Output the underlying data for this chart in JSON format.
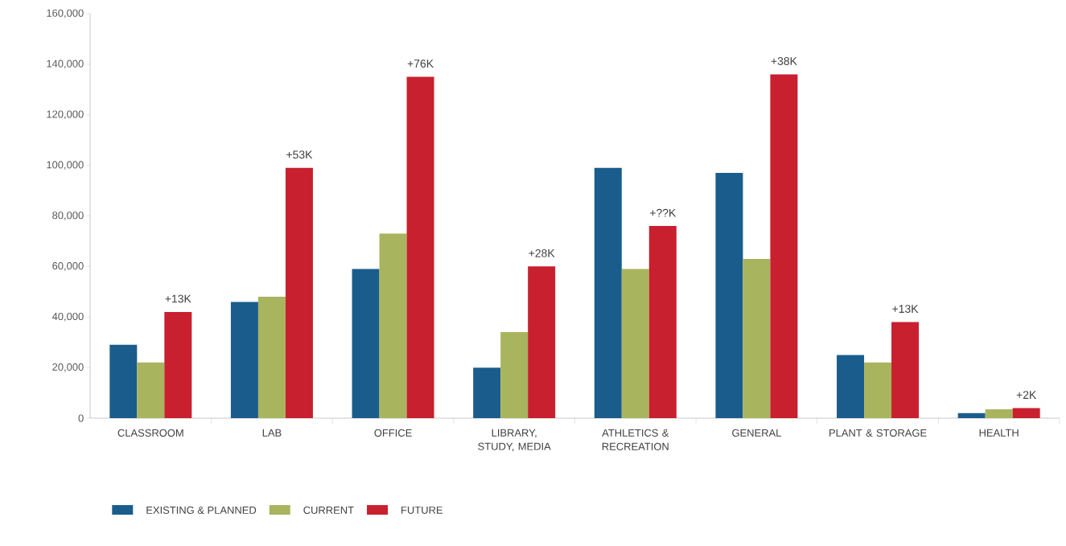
{
  "chart_data": {
    "type": "bar",
    "categories": [
      "CLASSROOM",
      "LAB",
      "OFFICE",
      "LIBRARY, STUDY, MEDIA",
      "ATHLETICS & RECREATION",
      "GENERAL",
      "PLANT & STORAGE",
      "HEALTH"
    ],
    "series": [
      {
        "name": "EXISTING & PLANNED",
        "color": "#1a5d8c",
        "values": [
          29000,
          46000,
          59000,
          20000,
          99000,
          97000,
          25000,
          2000
        ]
      },
      {
        "name": "CURRENT",
        "color": "#a9b45e",
        "values": [
          22000,
          48000,
          73000,
          34000,
          59000,
          63000,
          22000,
          3500
        ]
      },
      {
        "name": "FUTURE",
        "color": "#c8202e",
        "values": [
          42000,
          99000,
          135000,
          60000,
          76000,
          136000,
          38000,
          4000
        ]
      }
    ],
    "ylim": [
      0,
      160000
    ],
    "yticks": [
      {
        "value": 0,
        "label": "0"
      },
      {
        "value": 20000,
        "label": "20,000"
      },
      {
        "value": 40000,
        "label": "40,000"
      },
      {
        "value": 60000,
        "label": "60,000"
      },
      {
        "value": 80000,
        "label": "80,000"
      },
      {
        "value": 100000,
        "label": "100,000"
      },
      {
        "value": 120000,
        "label": "120,000"
      },
      {
        "value": 140000,
        "label": "140,000"
      },
      {
        "value": 160000,
        "label": "160,000"
      }
    ],
    "annotations": [
      "+13K",
      "+53K",
      "+76K",
      "+28K",
      "+??K",
      "+38K",
      "+13K",
      "+2K"
    ],
    "grid": false,
    "legend": "bottom left"
  }
}
